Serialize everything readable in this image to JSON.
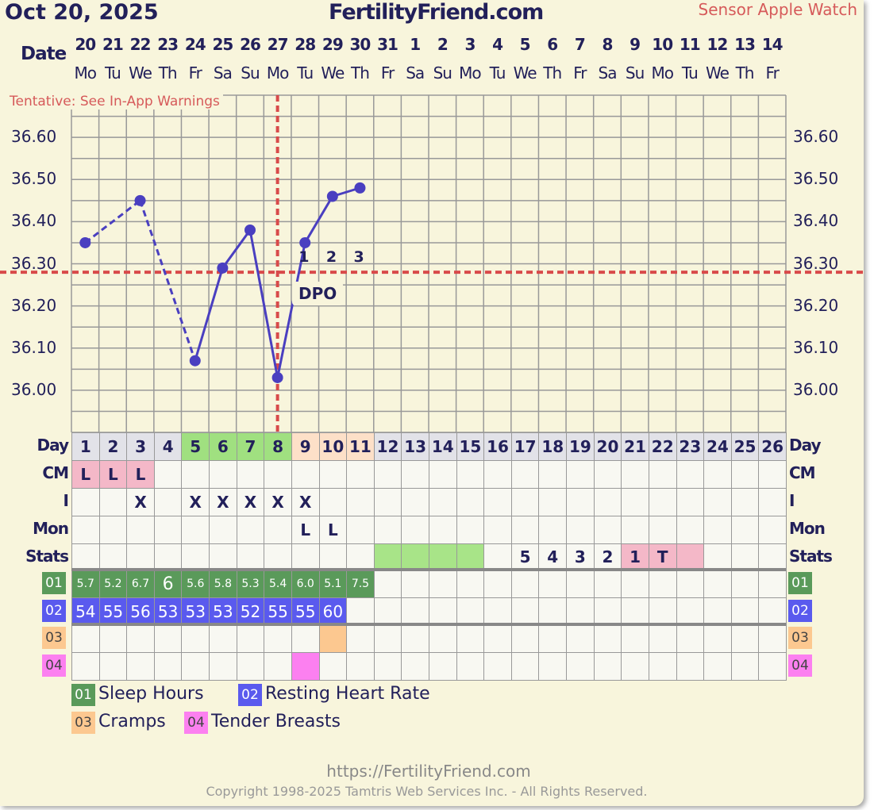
{
  "header": {
    "date": "Oct 20, 2025",
    "site": "FertilityFriend.com",
    "sensor": "Sensor Apple Watch",
    "date_label": "Date",
    "tentative": "Tentative: See In-App Warnings"
  },
  "dates": [
    "20",
    "21",
    "22",
    "23",
    "24",
    "25",
    "26",
    "27",
    "28",
    "29",
    "30",
    "31",
    "1",
    "2",
    "3",
    "4",
    "5",
    "6",
    "7",
    "8",
    "9",
    "10",
    "11",
    "12",
    "13",
    "14"
  ],
  "weekdays": [
    "Mo",
    "Tu",
    "We",
    "Th",
    "Fr",
    "Sa",
    "Su",
    "Mo",
    "Tu",
    "We",
    "Th",
    "Fr",
    "Sa",
    "Su",
    "Mo",
    "Tu",
    "We",
    "Th",
    "Fr",
    "Sa",
    "Su",
    "Mo",
    "Tu",
    "We",
    "Th",
    "Fr"
  ],
  "row_labels": {
    "day": "Day",
    "cm": "CM",
    "i": "I",
    "mon": "Mon",
    "stats": "Stats"
  },
  "day_colors": [
    "grey",
    "grey",
    "grey",
    "grey",
    "green",
    "green",
    "green",
    "green",
    "peach",
    "peach",
    "peach"
  ],
  "cm": [
    "L",
    "L",
    "L"
  ],
  "intercourse": [
    "",
    "",
    "X",
    "",
    "X",
    "X",
    "X",
    "X",
    "X"
  ],
  "monitor": [
    "",
    "",
    "",
    "",
    "",
    "",
    "",
    "",
    "L",
    "L"
  ],
  "stats": [
    "",
    "",
    "",
    "",
    "",
    "",
    "",
    "",
    "",
    "",
    "",
    "g",
    "g",
    "g",
    "g",
    "",
    "5",
    "4",
    "3",
    "2",
    "1",
    "T",
    "p"
  ],
  "sleep": [
    "5.7",
    "5.2",
    "6.7",
    "6",
    "5.6",
    "5.8",
    "5.3",
    "5.4",
    "6.0",
    "5.1",
    "7.5"
  ],
  "rhr": [
    "54",
    "55",
    "56",
    "53",
    "53",
    "53",
    "52",
    "55",
    "55",
    "60"
  ],
  "cramps_days": [
    10
  ],
  "tender_days": [
    9
  ],
  "legend": [
    {
      "code": "01",
      "label": "Sleep Hours",
      "color": "#5a9a5a"
    },
    {
      "code": "02",
      "label": "Resting Heart Rate",
      "color": "#5a5aee"
    },
    {
      "code": "03",
      "label": "Cramps",
      "color": "#fcc890"
    },
    {
      "code": "04",
      "label": "Tender Breasts",
      "color": "#fc80f0"
    }
  ],
  "footer": {
    "url": "https://FertilityFriend.com",
    "copyright": "Copyright 1998-2025 Tamtris Web Services Inc. - All Rights Reserved."
  },
  "chart_data": {
    "type": "line",
    "xlabel": "Day",
    "ylabel": "",
    "ylim": [
      35.9,
      36.7
    ],
    "yticks": [
      "36.00",
      "36.10",
      "36.20",
      "36.30",
      "36.40",
      "36.50",
      "36.60"
    ],
    "x": [
      1,
      2,
      3,
      4,
      5,
      6,
      7,
      8,
      9,
      10,
      11
    ],
    "temps": [
      36.35,
      null,
      36.45,
      null,
      36.07,
      36.29,
      36.38,
      36.03,
      36.35,
      36.46,
      36.48
    ],
    "dashed_segments": [
      [
        1,
        3
      ],
      [
        3,
        5
      ]
    ],
    "coverline": 36.28,
    "ovulation_day": 8,
    "dpo_labels": [
      "1",
      "2",
      "3"
    ],
    "dpo_text": "DPO",
    "line_color": "#4a3fc0",
    "coverline_color": "#d84a4a"
  }
}
